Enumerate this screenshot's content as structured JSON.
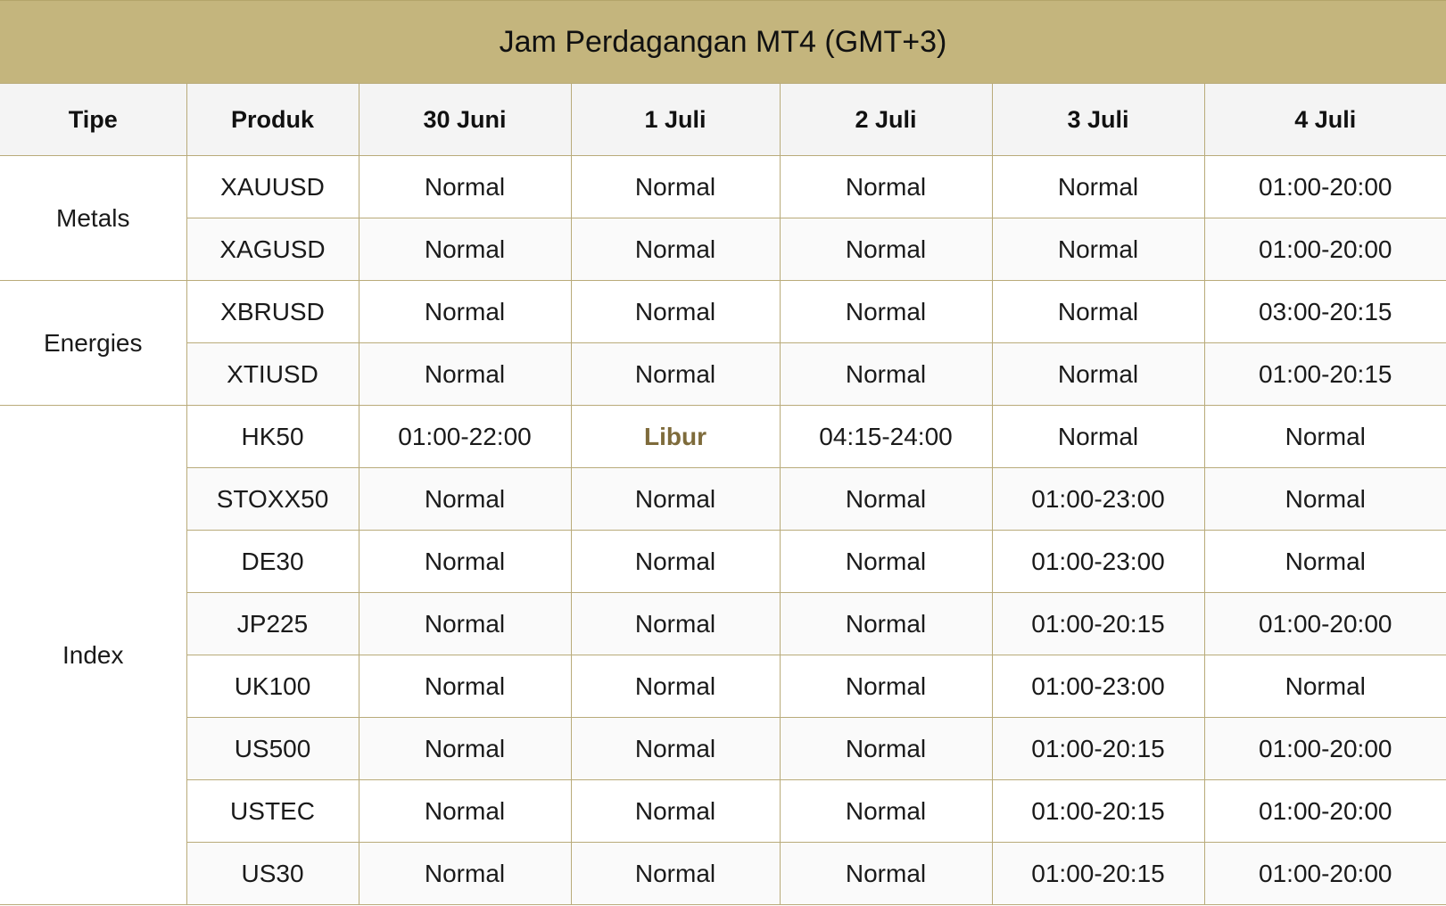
{
  "title": "Jam Perdagangan MT4 (GMT+3)",
  "headers": [
    "Tipe",
    "Produk",
    "30 Juni",
    "1 Juli",
    "2 Juli",
    "3 Juli",
    "4 Juli"
  ],
  "colors": {
    "title_bg": "#c4b57d",
    "border": "#b9ab7a",
    "holiday_text": "#7e6b3b"
  },
  "groups": [
    {
      "type": "Metals",
      "rows": [
        {
          "product": "XAUUSD",
          "values": [
            "Normal",
            "Normal",
            "Normal",
            "Normal",
            "01:00-20:00"
          ]
        },
        {
          "product": "XAGUSD",
          "values": [
            "Normal",
            "Normal",
            "Normal",
            "Normal",
            "01:00-20:00"
          ]
        }
      ]
    },
    {
      "type": "Energies",
      "rows": [
        {
          "product": "XBRUSD",
          "values": [
            "Normal",
            "Normal",
            "Normal",
            "Normal",
            "03:00-20:15"
          ]
        },
        {
          "product": "XTIUSD",
          "values": [
            "Normal",
            "Normal",
            "Normal",
            "Normal",
            "01:00-20:15"
          ]
        }
      ]
    },
    {
      "type": "Index",
      "rows": [
        {
          "product": "HK50",
          "values": [
            "01:00-22:00",
            "Libur",
            "04:15-24:00",
            "Normal",
            "Normal"
          ]
        },
        {
          "product": "STOXX50",
          "values": [
            "Normal",
            "Normal",
            "Normal",
            "01:00-23:00",
            "Normal"
          ]
        },
        {
          "product": "DE30",
          "values": [
            "Normal",
            "Normal",
            "Normal",
            "01:00-23:00",
            "Normal"
          ]
        },
        {
          "product": "JP225",
          "values": [
            "Normal",
            "Normal",
            "Normal",
            "01:00-20:15",
            "01:00-20:00"
          ]
        },
        {
          "product": "UK100",
          "values": [
            "Normal",
            "Normal",
            "Normal",
            "01:00-23:00",
            "Normal"
          ]
        },
        {
          "product": "US500",
          "values": [
            "Normal",
            "Normal",
            "Normal",
            "01:00-20:15",
            "01:00-20:00"
          ]
        },
        {
          "product": "USTEC",
          "values": [
            "Normal",
            "Normal",
            "Normal",
            "01:00-20:15",
            "01:00-20:00"
          ]
        },
        {
          "product": "US30",
          "values": [
            "Normal",
            "Normal",
            "Normal",
            "01:00-20:15",
            "01:00-20:00"
          ]
        }
      ]
    }
  ]
}
